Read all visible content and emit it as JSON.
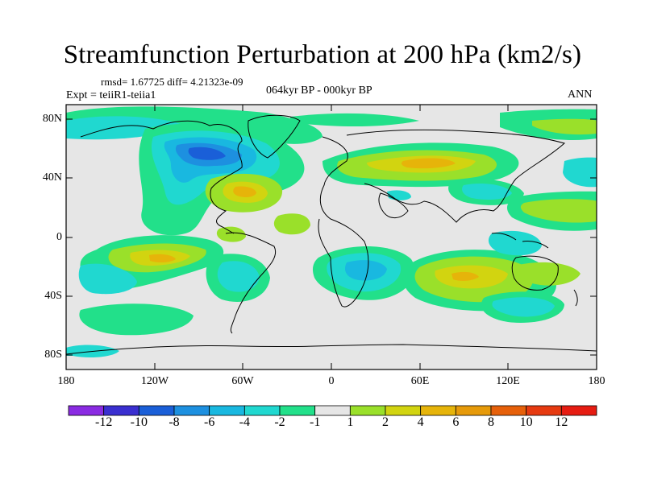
{
  "title": "Streamfunction Perturbation at 200 hPa (km2/s)",
  "stats_line": "rmsd= 1.67725 diff= 4.21323e-09",
  "expt_label": "Expt = teiiR1-teiia1",
  "period_label": "064kyr BP - 000kyr BP",
  "season_label": "ANN",
  "y_ticks": [
    "80N",
    "40N",
    "0",
    "40S",
    "80S"
  ],
  "x_ticks": [
    "180",
    "120W",
    "60W",
    "0",
    "60E",
    "120E",
    "180"
  ],
  "colorbar": {
    "labels": [
      "-12",
      "-10",
      "-8",
      "-6",
      "-4",
      "-2",
      "-1",
      "1",
      "2",
      "4",
      "6",
      "8",
      "10",
      "12"
    ],
    "colors": [
      "#8a2be2",
      "#3a2fd0",
      "#1a5fd8",
      "#1d90e0",
      "#19b8e0",
      "#20d8d0",
      "#22e08a",
      "#e6e6e6",
      "#9ae02a",
      "#d2d410",
      "#e6b40a",
      "#e69a0a",
      "#e6600a",
      "#e63a10",
      "#e61c12"
    ]
  }
}
